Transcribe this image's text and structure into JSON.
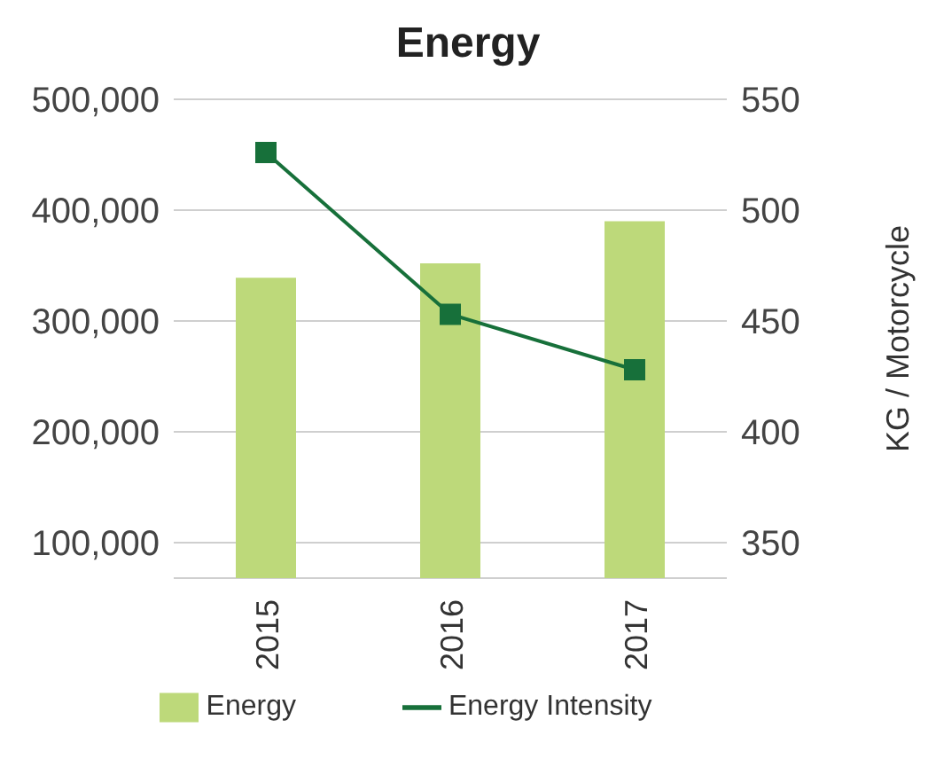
{
  "chart_data": {
    "type": "bar",
    "title": "Energy",
    "y2label": "KG / Motorcycle",
    "categories": [
      "2015",
      "2016",
      "2017"
    ],
    "series": [
      {
        "name": "Energy",
        "color": "#bdd97a",
        "values": [
          339000,
          352000,
          390000
        ]
      },
      {
        "name": "Energy Intensity",
        "type": "line",
        "axis": "y2",
        "color": "#17703a",
        "values": [
          526,
          453,
          428
        ],
        "marker": "square"
      }
    ],
    "ylim": [
      68000,
      500000
    ],
    "yticks": [
      {
        "value": 100000,
        "label": "100,000"
      },
      {
        "value": 200000,
        "label": "200,000"
      },
      {
        "value": 300000,
        "label": "300,000"
      },
      {
        "value": 400000,
        "label": "400,000"
      },
      {
        "value": 500000,
        "label": "500,000"
      }
    ],
    "y2lim": [
      334,
      550
    ],
    "y2ticks": [
      350,
      400,
      450,
      500,
      550
    ],
    "grid": "y",
    "legend": "bottom"
  }
}
